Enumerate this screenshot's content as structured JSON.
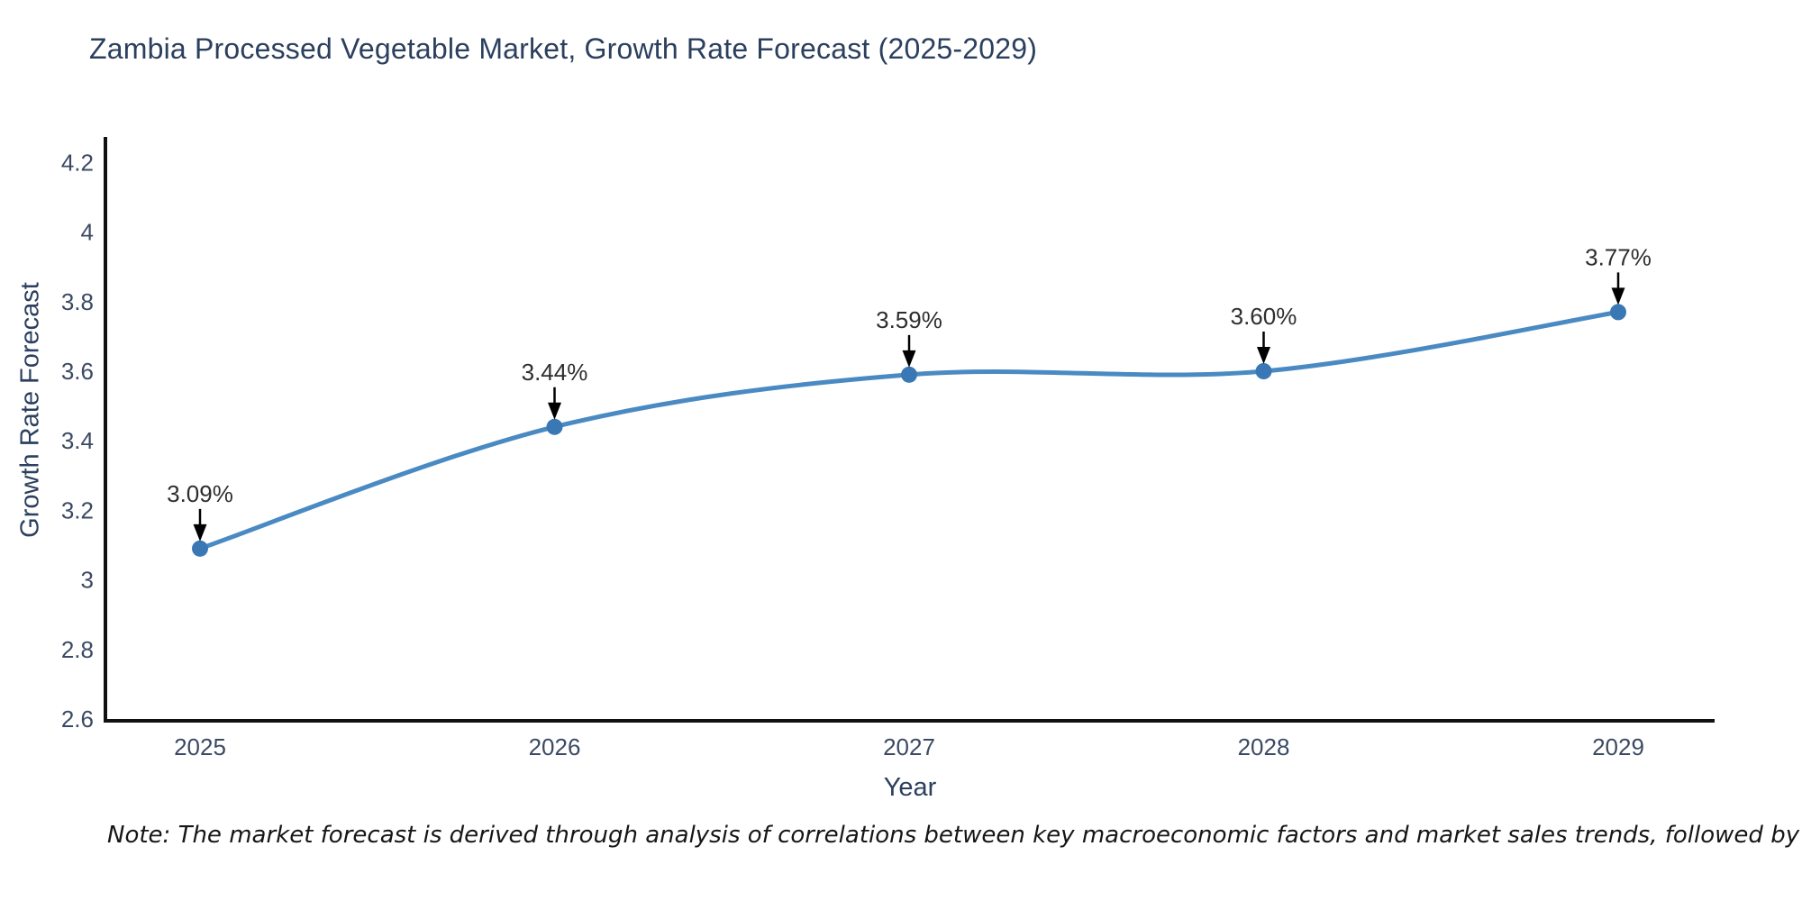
{
  "title": "Zambia Processed Vegetable Market, Growth Rate Forecast (2025-2029)",
  "note": "Note: The market forecast is derived through analysis of correlations between key macroeconomic factors and market sales trends, followed by predictive modeling to project future sales",
  "chart_data": {
    "type": "line",
    "title": "Zambia Processed Vegetable Market, Growth Rate Forecast (2025-2029)",
    "xlabel": "Year",
    "ylabel": "Growth Rate Forecast",
    "x": [
      2025,
      2026,
      2027,
      2028,
      2029
    ],
    "y": [
      3.09,
      3.44,
      3.59,
      3.6,
      3.77
    ],
    "point_labels": [
      "3.09%",
      "3.44%",
      "3.59%",
      "3.60%",
      "3.77%"
    ],
    "xticks": [
      2025,
      2026,
      2027,
      2028,
      2029
    ],
    "yticks": [
      2.6,
      2.8,
      3,
      3.2,
      3.4,
      3.6,
      3.8,
      4,
      4.2
    ],
    "ylim": [
      2.6,
      4.27
    ],
    "line_shape": "spline",
    "markers": true,
    "grid": false,
    "legend": "none",
    "colors": {
      "line": "#4a8ac2",
      "marker": "#3a78b5",
      "axis": "#111111",
      "tick_text": "#3b4a63",
      "title_text": "#2b3f5e",
      "annotation_text": "#2e2e2e",
      "arrow": "#000000",
      "background": "#ffffff"
    }
  }
}
